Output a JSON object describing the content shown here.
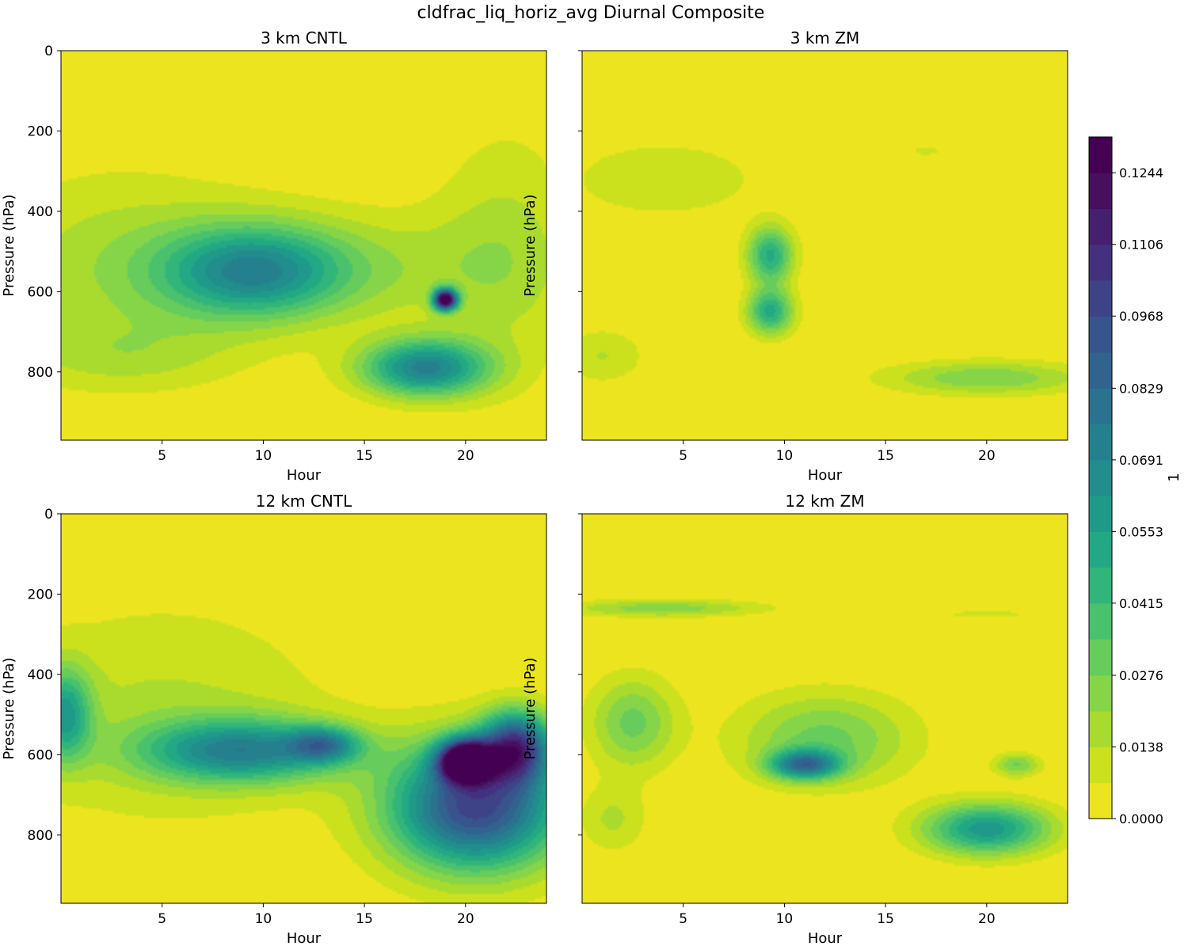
{
  "figure_title": "cldfrac_liq_horiz_avg Diurnal Composite",
  "colorbar": {
    "label": "1",
    "ticks": [
      "0.0000",
      "0.0138",
      "0.0276",
      "0.0415",
      "0.0553",
      "0.0691",
      "0.0829",
      "0.0968",
      "0.1106",
      "0.1244"
    ],
    "levels": [
      0.0,
      0.0069,
      0.0138,
      0.0207,
      0.0276,
      0.0346,
      0.0415,
      0.0484,
      0.0553,
      0.0622,
      0.0691,
      0.076,
      0.0829,
      0.0898,
      0.0968,
      0.1037,
      0.1106,
      0.1175,
      0.1244,
      0.1313
    ],
    "colors": [
      "#ece41e",
      "#cbe11e",
      "#a9db2f",
      "#86d549",
      "#66cc5c",
      "#49c16d",
      "#31b57b",
      "#23a884",
      "#1f9a8a",
      "#218d8c",
      "#25808e",
      "#2a728e",
      "#30648e",
      "#37548c",
      "#3e4388",
      "#43317f",
      "#46206f",
      "#470f5e",
      "#440154"
    ]
  },
  "chart_data": [
    {
      "type": "heatmap",
      "title": "3 km CNTL",
      "xlabel": "Hour",
      "ylabel": "Pressure (hPa)",
      "xlim": [
        0,
        24
      ],
      "ylim": [
        970,
        0
      ],
      "xticks": [
        5,
        10,
        15,
        20
      ],
      "yticks": [
        0,
        200,
        400,
        600,
        800
      ],
      "show_yticklabels": true,
      "blobs": [
        {
          "hour": 3,
          "pressure": 540,
          "sx": 5,
          "sy": 170,
          "amp": 0.018
        },
        {
          "hour": 9.5,
          "pressure": 550,
          "sx": 3.2,
          "sy": 80,
          "amp": 0.06
        },
        {
          "hour": 15.5,
          "pressure": 540,
          "sx": 5,
          "sy": 100,
          "amp": 0.015
        },
        {
          "hour": 18,
          "pressure": 790,
          "sx": 2.2,
          "sy": 50,
          "amp": 0.07
        },
        {
          "hour": 19,
          "pressure": 620,
          "sx": 0.4,
          "sy": 18,
          "amp": 0.135
        },
        {
          "hour": 22,
          "pressure": 500,
          "sx": 2.5,
          "sy": 220,
          "amp": 0.015
        },
        {
          "hour": 3,
          "pressure": 760,
          "sx": 4,
          "sy": 60,
          "amp": 0.012
        }
      ]
    },
    {
      "type": "heatmap",
      "title": "3 km ZM",
      "xlabel": "Hour",
      "ylabel": "Pressure (hPa)",
      "xlim": [
        0,
        24
      ],
      "ylim": [
        970,
        0
      ],
      "xticks": [
        5,
        10,
        15,
        20
      ],
      "yticks": [
        0,
        200,
        400,
        600,
        800
      ],
      "show_yticklabels": false,
      "blobs": [
        {
          "hour": 4,
          "pressure": 320,
          "sx": 3.5,
          "sy": 70,
          "amp": 0.013
        },
        {
          "hour": 9.3,
          "pressure": 510,
          "sx": 0.8,
          "sy": 50,
          "amp": 0.05
        },
        {
          "hour": 9.3,
          "pressure": 650,
          "sx": 0.8,
          "sy": 40,
          "amp": 0.05
        },
        {
          "hour": 20,
          "pressure": 815,
          "sx": 3.5,
          "sy": 30,
          "amp": 0.027
        },
        {
          "hour": 1,
          "pressure": 760,
          "sx": 1.5,
          "sy": 50,
          "amp": 0.014
        },
        {
          "hour": 17,
          "pressure": 250,
          "sx": 1,
          "sy": 15,
          "amp": 0.008
        }
      ]
    },
    {
      "type": "heatmap",
      "title": "12 km CNTL",
      "xlabel": "Hour",
      "ylabel": "Pressure (hPa)",
      "xlim": [
        0,
        24
      ],
      "ylim": [
        970,
        0
      ],
      "xticks": [
        5,
        10,
        15,
        20
      ],
      "yticks": [
        0,
        200,
        400,
        600,
        800
      ],
      "show_yticklabels": true,
      "blobs": [
        {
          "hour": 0.2,
          "pressure": 500,
          "sx": 0.9,
          "sy": 80,
          "amp": 0.05
        },
        {
          "hour": 9,
          "pressure": 590,
          "sx": 3.5,
          "sy": 55,
          "amp": 0.065
        },
        {
          "hour": 13,
          "pressure": 575,
          "sx": 1.2,
          "sy": 30,
          "amp": 0.05
        },
        {
          "hour": 5,
          "pressure": 500,
          "sx": 6,
          "sy": 200,
          "amp": 0.015
        },
        {
          "hour": 20.5,
          "pressure": 730,
          "sx": 3,
          "sy": 110,
          "amp": 0.1
        },
        {
          "hour": 20,
          "pressure": 615,
          "sx": 0.9,
          "sy": 35,
          "amp": 0.14
        },
        {
          "hour": 22.5,
          "pressure": 580,
          "sx": 1.2,
          "sy": 60,
          "amp": 0.09
        }
      ]
    },
    {
      "type": "heatmap",
      "title": "12 km ZM",
      "xlabel": "Hour",
      "ylabel": "Pressure (hPa)",
      "xlim": [
        0,
        24
      ],
      "ylim": [
        970,
        0
      ],
      "xticks": [
        5,
        10,
        15,
        20
      ],
      "yticks": [
        0,
        200,
        400,
        600,
        800
      ],
      "show_yticklabels": false,
      "blobs": [
        {
          "hour": 4,
          "pressure": 235,
          "sx": 3.5,
          "sy": 15,
          "amp": 0.025
        },
        {
          "hour": 2.5,
          "pressure": 520,
          "sx": 1.5,
          "sy": 80,
          "amp": 0.03
        },
        {
          "hour": 11,
          "pressure": 625,
          "sx": 1.2,
          "sy": 25,
          "amp": 0.07
        },
        {
          "hour": 12,
          "pressure": 560,
          "sx": 3,
          "sy": 80,
          "amp": 0.03
        },
        {
          "hour": 20,
          "pressure": 785,
          "sx": 2.2,
          "sy": 45,
          "amp": 0.06
        },
        {
          "hour": 21.5,
          "pressure": 625,
          "sx": 0.8,
          "sy": 20,
          "amp": 0.028
        },
        {
          "hour": 1.5,
          "pressure": 760,
          "sx": 1.2,
          "sy": 60,
          "amp": 0.015
        },
        {
          "hour": 20,
          "pressure": 250,
          "sx": 3,
          "sy": 12,
          "amp": 0.008
        }
      ]
    }
  ]
}
